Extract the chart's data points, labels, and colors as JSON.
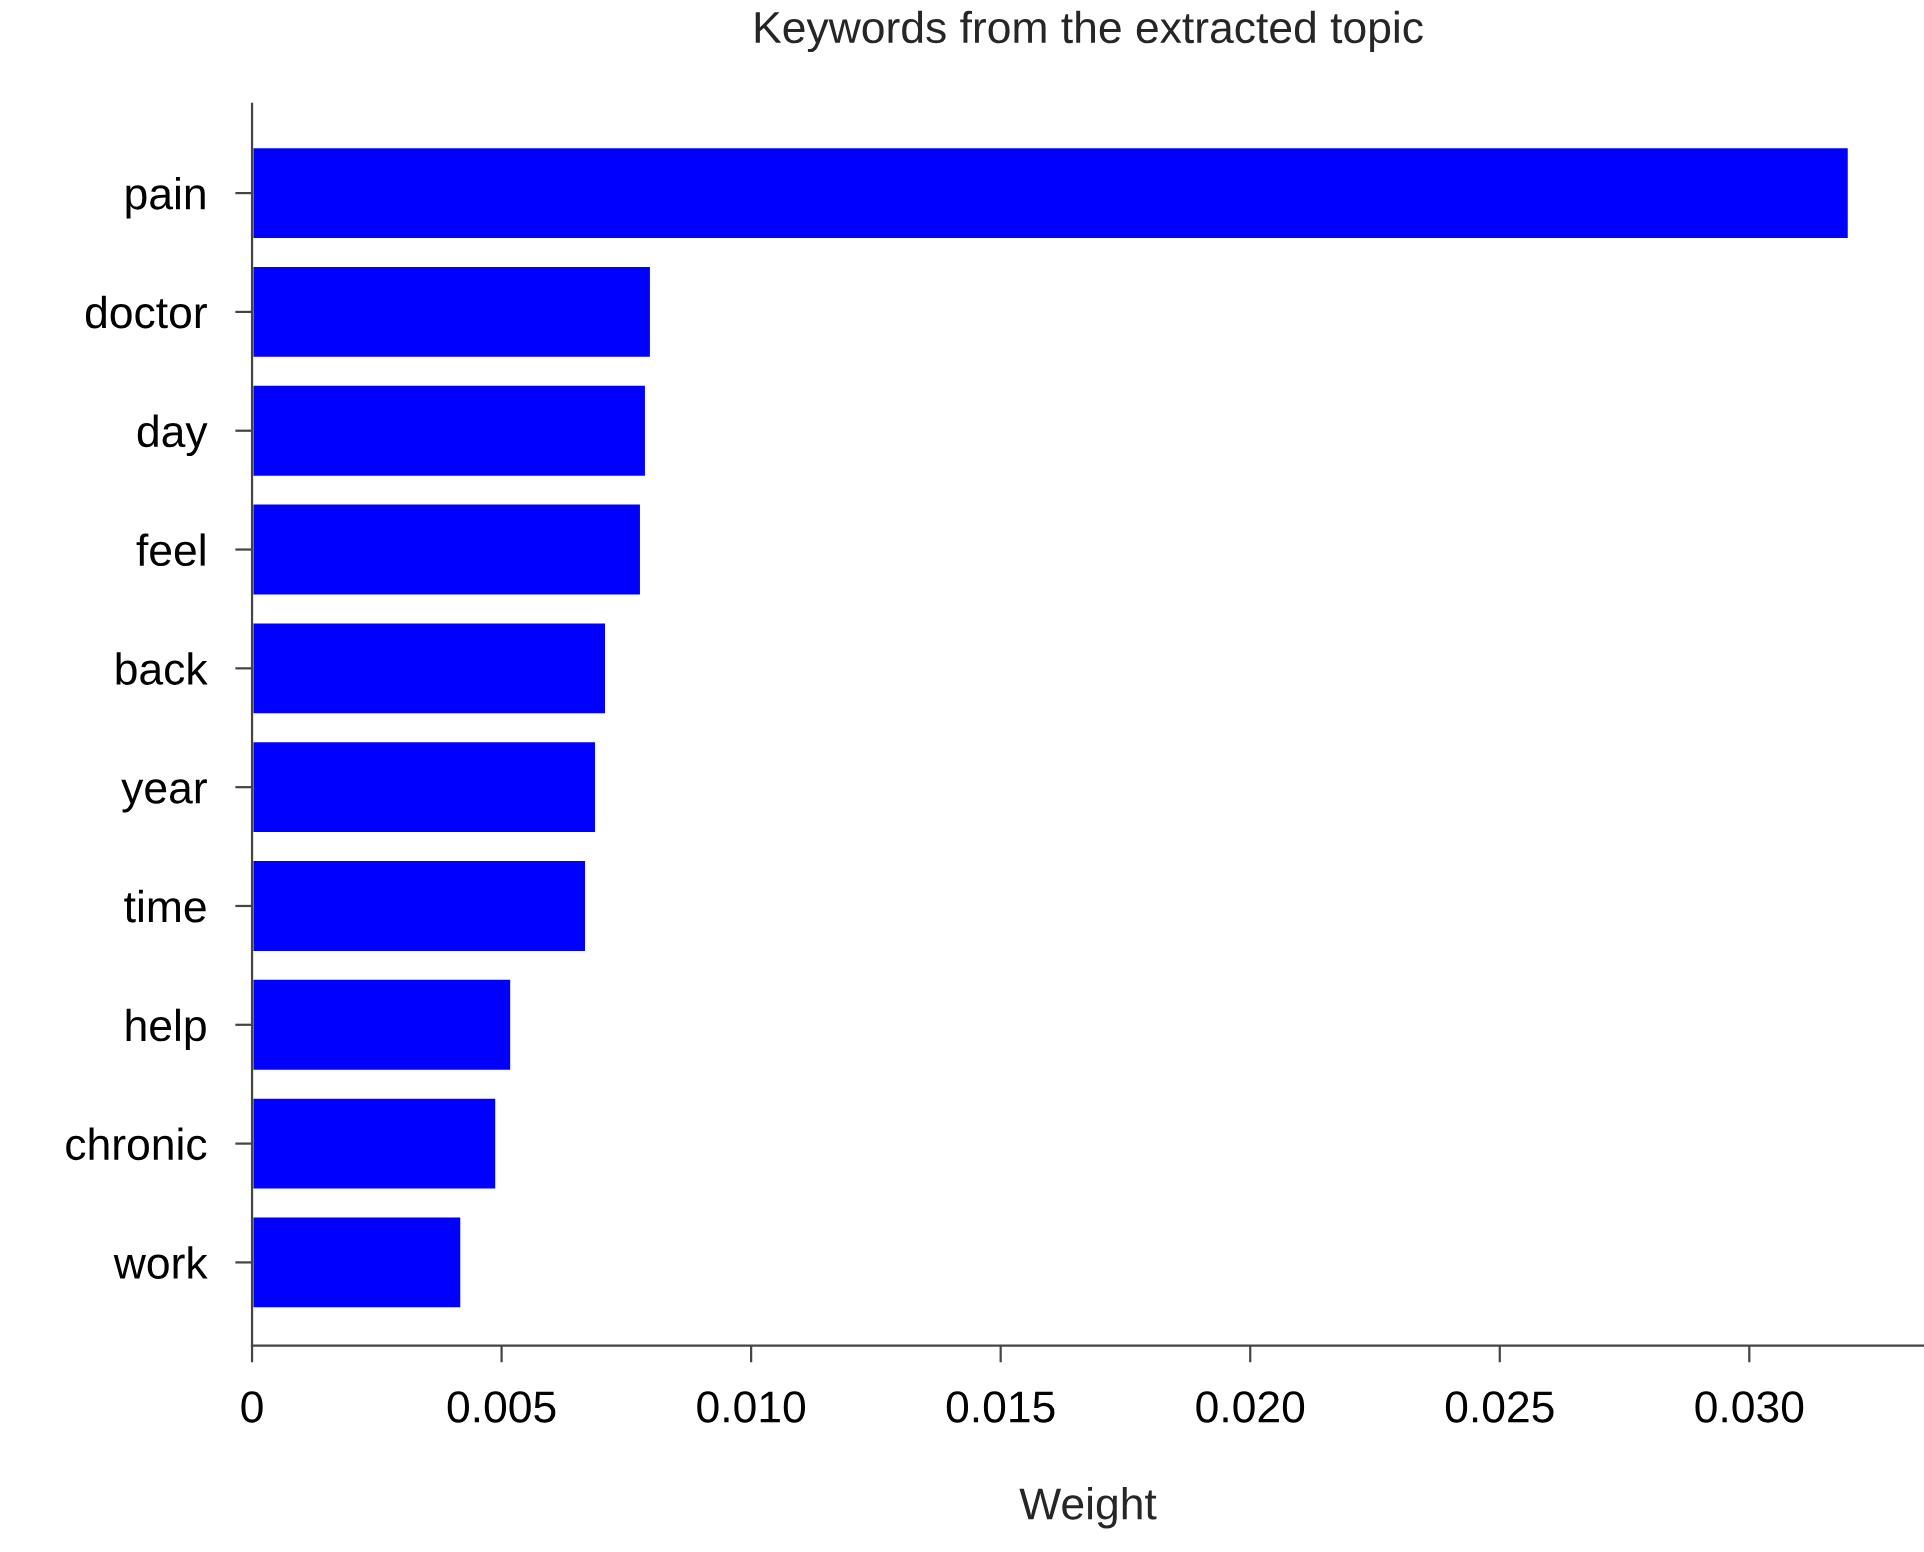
{
  "chart_data": {
    "type": "bar",
    "orientation": "horizontal",
    "title": "Keywords from the extracted topic",
    "xlabel": "Weight",
    "categories": [
      "pain",
      "doctor",
      "day",
      "feel",
      "back",
      "year",
      "time",
      "help",
      "chronic",
      "work"
    ],
    "values": [
      0.032,
      0.008,
      0.0079,
      0.0078,
      0.0071,
      0.0069,
      0.0067,
      0.0052,
      0.0049,
      0.0042
    ],
    "color": "#0000ff",
    "xlim": [
      0,
      0.0335
    ],
    "xticks": [
      0,
      {
        "value": 0.005,
        "label": "0.005"
      },
      {
        "value": 0.01,
        "label": "0.010"
      },
      {
        "value": 0.015,
        "label": "0.015"
      },
      {
        "value": 0.02,
        "label": "0.020"
      },
      {
        "value": 0.025,
        "label": "0.025"
      },
      {
        "value": 0.03,
        "label": "0.030"
      }
    ],
    "grid": false,
    "legend": false
  }
}
